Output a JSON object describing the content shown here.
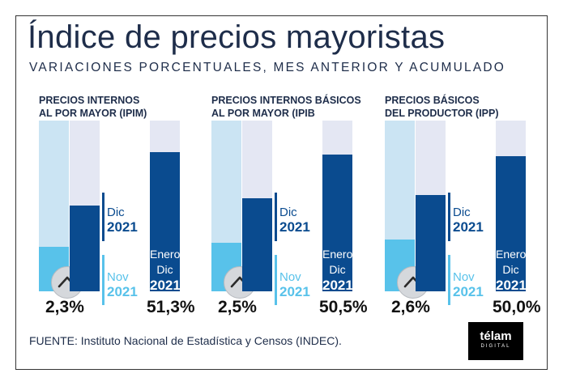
{
  "title": "Índice de precios mayoristas",
  "subtitle": "VARIACIONES PORCENTUALES, MES ANTERIOR Y ACUMULADO",
  "source": "FUENTE: Instituto Nacional de Estadística y Censos (INDEC).",
  "logo": {
    "name": "télam",
    "sub": "DIGITAL"
  },
  "colors": {
    "nov": "#58c2ea",
    "dic": "#0a4b8f",
    "accumulated": "#0a4b8f",
    "text": "#1e2d4a"
  },
  "chart_data": {
    "type": "bar",
    "title": "Índice de precios mayoristas",
    "subtitle": "VARIACIONES PORCENTUALES, MES ANTERIOR Y ACUMULADO",
    "series_labels": {
      "nov": {
        "month": "Nov",
        "year": "2021"
      },
      "dic": {
        "month": "Dic",
        "year": "2021"
      },
      "accumulated": {
        "line1": "Enero",
        "line2": "Dic",
        "year": "2021"
      }
    },
    "groups": [
      {
        "name": "PRECIOS INTERNOS AL POR MAYOR (IPIM)",
        "title_line1": "PRECIOS INTERNOS",
        "title_line2": "AL POR MAYOR (IPIM)",
        "nov": 1.2,
        "dic": 2.3,
        "dic_label": "2,3%",
        "accumulated": 51.3,
        "accumulated_label": "51,3%"
      },
      {
        "name": "PRECIOS INTERNOS BÁSICOS AL POR MAYOR (IPIB)",
        "title_line1": "PRECIOS INTERNOS BÁSICOS",
        "title_line2": "AL POR MAYOR (IPIB",
        "nov": 1.3,
        "dic": 2.5,
        "dic_label": "2,5%",
        "accumulated": 50.5,
        "accumulated_label": "50,5%"
      },
      {
        "name": "PRECIOS BÁSICOS DEL PRODUCTOR (IPP)",
        "title_line1": "PRECIOS BÁSICOS",
        "title_line2": "DEL PRODUCTOR (IPP)",
        "nov": 1.4,
        "dic": 2.6,
        "dic_label": "2,6%",
        "accumulated": 50.0,
        "accumulated_label": "50,0%"
      }
    ],
    "monthly_scale_max": 4.6,
    "accumulated_scale_max": 63
  }
}
